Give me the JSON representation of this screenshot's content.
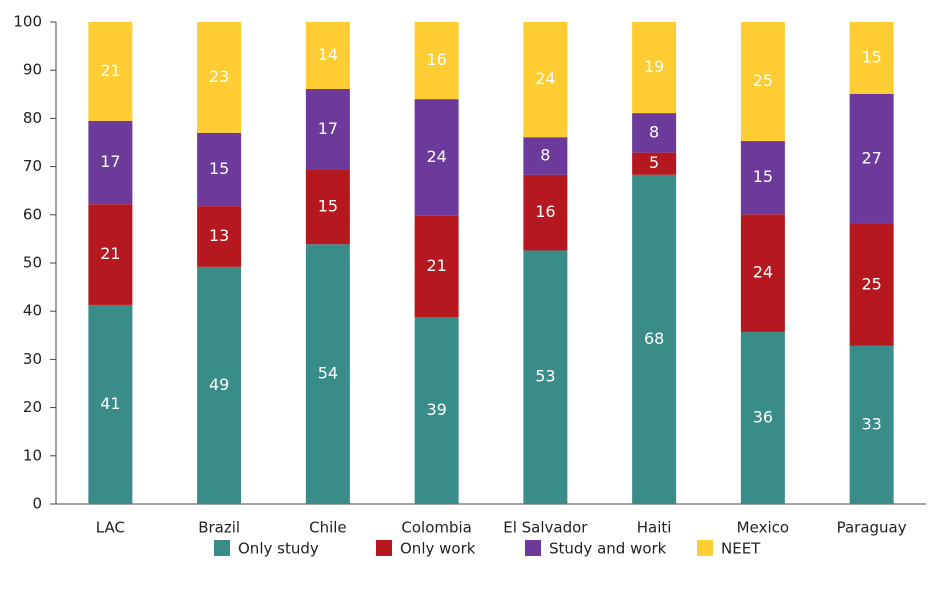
{
  "chart_data": {
    "type": "stacked_bar",
    "categories": [
      "LAC",
      "Brazil",
      "Chile",
      "Colombia",
      "El Salvador",
      "Haiti",
      "Mexico",
      "Paraguay"
    ],
    "series": [
      {
        "name": "Only study",
        "color": "#3a8c89",
        "values": [
          41.3,
          49.2,
          53.9,
          38.8,
          52.6,
          68.3,
          35.7,
          32.8
        ],
        "value_labels": [
          "41",
          "49",
          "54",
          "39",
          "53",
          "68",
          "36",
          "33"
        ]
      },
      {
        "name": "Only work",
        "color": "#b5191f",
        "values": [
          20.9,
          12.6,
          15.4,
          21.0,
          15.7,
          4.6,
          24.4,
          25.3
        ],
        "value_labels": [
          "21",
          "13",
          "15",
          "21",
          "16",
          "5",
          "24",
          "25"
        ]
      },
      {
        "name": "Study and work",
        "color": "#6b3a9a",
        "values": [
          17.3,
          15.2,
          16.8,
          24.2,
          7.8,
          8.2,
          15.2,
          27.0
        ],
        "value_labels": [
          "17",
          "15",
          "17",
          "24",
          "8",
          "8",
          "15",
          "27"
        ]
      },
      {
        "name": "NEET",
        "color": "#fecc33",
        "values": [
          20.5,
          23.0,
          13.9,
          16.0,
          23.9,
          18.9,
          24.7,
          14.9
        ],
        "value_labels": [
          "21",
          "23",
          "14",
          "16",
          "24",
          "19",
          "25",
          "15"
        ]
      }
    ],
    "ylim": [
      0,
      100
    ],
    "yticks": [
      0,
      10,
      20,
      30,
      40,
      50,
      60,
      70,
      80,
      90,
      100
    ],
    "grid": false,
    "legend": "bottom"
  }
}
